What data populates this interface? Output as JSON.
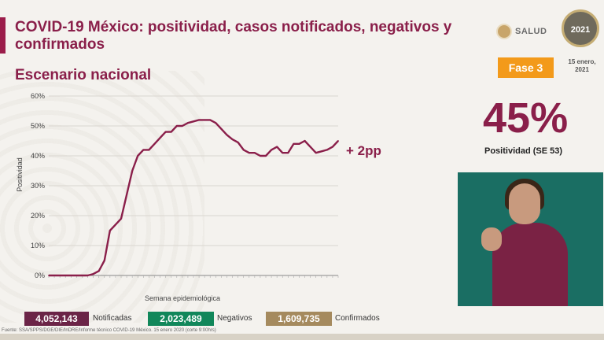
{
  "header": {
    "title": "COVID-19 México: positividad, casos notificados, negativos y confirmados",
    "subtitle": "Escenario nacional",
    "logo_text": "SALUD",
    "seal_text": "2021",
    "phase": "Fase 3",
    "date": "15 enero, 2021"
  },
  "kpi": {
    "value": "45%",
    "label": "Positividad (SE 53)",
    "change": "+ 2pp"
  },
  "totals": [
    {
      "value": "4,052,143",
      "label": "Notificadas",
      "color": "#6b2447"
    },
    {
      "value": "2,023,489",
      "label": "Negativos",
      "color": "#11875a"
    },
    {
      "value": "1,609,735",
      "label": "Confirmados",
      "color": "#a58a5e"
    }
  ],
  "source": "Fuente: SSA/SPPS/DGE/DIE/InDRE/Informe técnico COVID-19 México. 15 enero 2020 (corte 9:00hrs)",
  "chart_data": {
    "type": "line",
    "xlabel": "Semana epidemiológica",
    "ylabel": "Positividad",
    "ylim": [
      0,
      60
    ],
    "yticks": [
      "0%",
      "10%",
      "20%",
      "30%",
      "40%",
      "50%",
      "60%"
    ],
    "grid": true,
    "line_color": "#8a1f4a",
    "series": [
      {
        "values": [
          0,
          0,
          0,
          0,
          0,
          0,
          0,
          0,
          0.5,
          1.5,
          5,
          15,
          17,
          19,
          27,
          35,
          40,
          42,
          42,
          44,
          46,
          48,
          48,
          50,
          50,
          51,
          51.5,
          52,
          52,
          52,
          51,
          49,
          47,
          45.5,
          44.5,
          42,
          41,
          41,
          40,
          40,
          42,
          43,
          41,
          41,
          44,
          44,
          45,
          43,
          41,
          41.5,
          42,
          43,
          45
        ]
      }
    ]
  }
}
